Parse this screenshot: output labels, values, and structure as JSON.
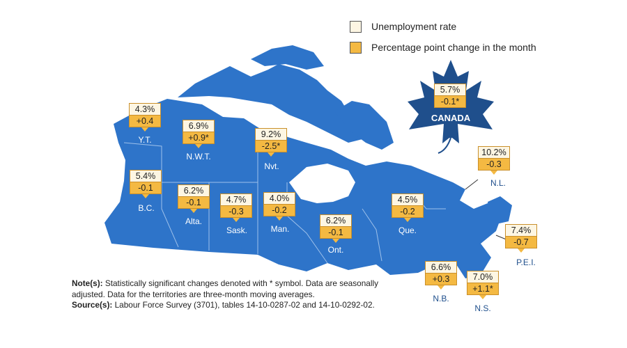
{
  "legend": {
    "rate_label": "Unemployment rate",
    "change_label": "Percentage point change in the month",
    "rate_color": "#fdf6e3",
    "change_color": "#f4b942"
  },
  "map_colors": {
    "land": "#2e74c9",
    "leaf": "#1f4f8c",
    "border": "#9dc0ea"
  },
  "canada": {
    "label": "CANADA",
    "rate": "5.7%",
    "change": "-0.1*"
  },
  "provinces": [
    {
      "abbr": "Y.T.",
      "rate": "4.3%",
      "change": "+0.4"
    },
    {
      "abbr": "N.W.T.",
      "rate": "6.9%",
      "change": "+0.9*"
    },
    {
      "abbr": "Nvt.",
      "rate": "9.2%",
      "change": "-2.5*"
    },
    {
      "abbr": "B.C.",
      "rate": "5.4%",
      "change": "-0.1"
    },
    {
      "abbr": "Alta.",
      "rate": "6.2%",
      "change": "-0.1"
    },
    {
      "abbr": "Sask.",
      "rate": "4.7%",
      "change": "-0.3"
    },
    {
      "abbr": "Man.",
      "rate": "4.0%",
      "change": "-0.2"
    },
    {
      "abbr": "Ont.",
      "rate": "6.2%",
      "change": "-0.1"
    },
    {
      "abbr": "Que.",
      "rate": "4.5%",
      "change": "-0.2"
    },
    {
      "abbr": "N.L.",
      "rate": "10.2%",
      "change": "-0.3"
    },
    {
      "abbr": "P.E.I.",
      "rate": "7.4%",
      "change": "-0.7"
    },
    {
      "abbr": "N.B.",
      "rate": "6.6%",
      "change": "+0.3"
    },
    {
      "abbr": "N.S.",
      "rate": "7.0%",
      "change": "+1.1*"
    }
  ],
  "notes": {
    "note_label": "Note(s):",
    "note_text": "Statistically significant changes denoted with * symbol. Data are seasonally adjusted. Data for the territories are three-month moving averages.",
    "source_label": "Source(s):",
    "source_text": "Labour Force Survey (3701), tables 14-10-0287-02 and 14-10-0292-02."
  }
}
